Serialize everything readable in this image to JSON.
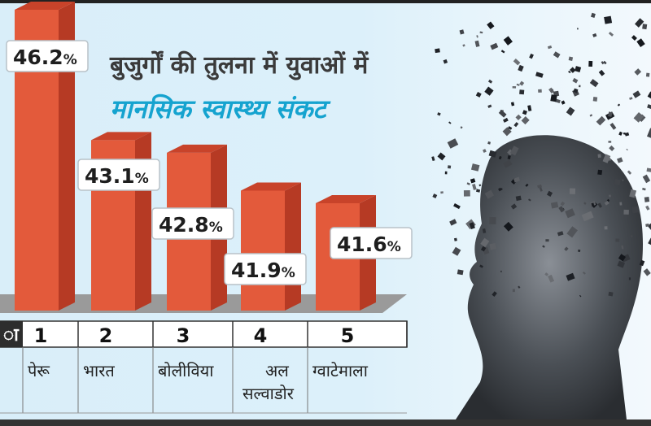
{
  "chart_data": {
    "type": "bar",
    "title": "बुजुर्गों की तुलना में युवाओं में",
    "subtitle": "मानसिक स्वास्थ्य संकट",
    "categories": [
      "पेरू",
      "भारत",
      "बोलीविया",
      "अल सल्वाडोर",
      "ग्वाटेमाला"
    ],
    "ranks": [
      "1",
      "2",
      "3",
      "4",
      "5"
    ],
    "values": [
      46.2,
      43.1,
      42.8,
      41.9,
      41.6
    ],
    "value_labels": [
      "46.2%",
      "43.1%",
      "42.8%",
      "41.9%",
      "41.6%"
    ],
    "partial_left_label": "ा",
    "ylim": [
      36,
      47
    ],
    "grid": false,
    "legend": "none"
  },
  "colors": {
    "bar_front": "#e35a3b",
    "bar_side": "#b63a24",
    "bar_top": "#c8432a",
    "floor": "#9a9a9a",
    "title": "#3a3a3a",
    "subtitle": "#15a3cf"
  },
  "image": {
    "icon": "fragmenting-head-silhouette"
  }
}
